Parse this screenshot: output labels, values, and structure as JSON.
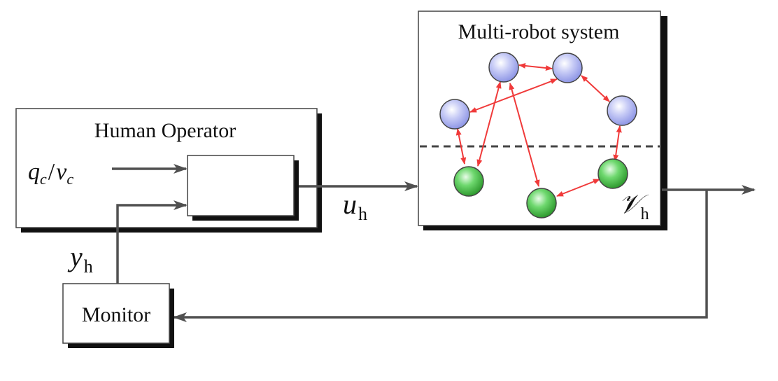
{
  "blocks": {
    "human_operator": {
      "title": "Human Operator"
    },
    "multi_robot": {
      "title": "Multi-robot system"
    },
    "monitor": {
      "title": "Monitor"
    }
  },
  "signals": {
    "input": {
      "q": "q",
      "q_sub": "c",
      "slash": "/",
      "v": "v",
      "v_sub": "c"
    },
    "control": {
      "main": "u",
      "sub": "h"
    },
    "output": {
      "main": "y",
      "sub": "h"
    },
    "visible_set": {
      "main": "𝒱",
      "sub": "h"
    }
  },
  "robots": {
    "leaders_color": "#b7bdf2",
    "followers_color": "#5cc85c",
    "link_color": "#f03a3a"
  },
  "colors": {
    "box_shadow": "#111111",
    "arrow": "#505050",
    "divider": "#444444"
  }
}
